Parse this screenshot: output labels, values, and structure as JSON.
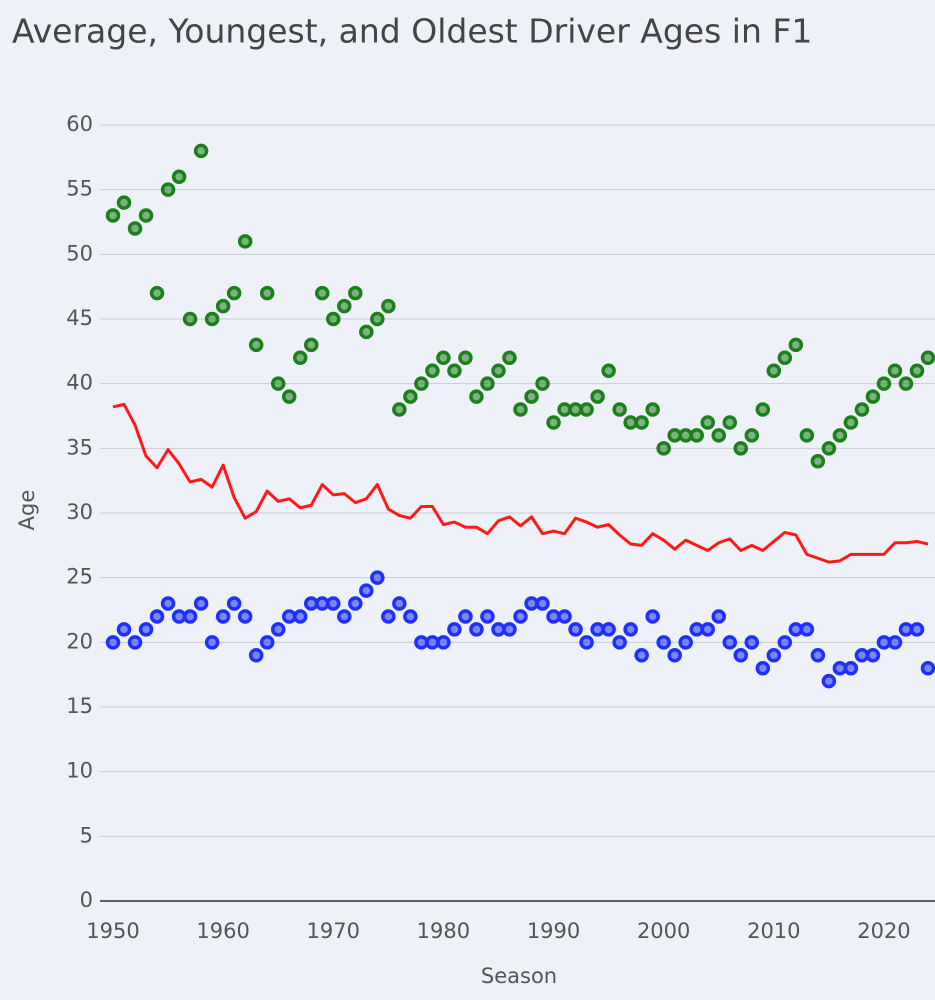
{
  "chart_data": {
    "type": "scatter-line",
    "title": "Average, Youngest, and Oldest Driver Ages in F1",
    "xlabel": "Season",
    "ylabel": "Age",
    "x": [
      1950,
      1951,
      1952,
      1953,
      1954,
      1955,
      1956,
      1957,
      1958,
      1959,
      1960,
      1961,
      1962,
      1963,
      1964,
      1965,
      1966,
      1967,
      1968,
      1969,
      1970,
      1971,
      1972,
      1973,
      1974,
      1975,
      1976,
      1977,
      1978,
      1979,
      1980,
      1981,
      1982,
      1983,
      1984,
      1985,
      1986,
      1987,
      1988,
      1989,
      1990,
      1991,
      1992,
      1993,
      1994,
      1995,
      1996,
      1997,
      1998,
      1999,
      2000,
      2001,
      2002,
      2003,
      2004,
      2005,
      2006,
      2007,
      2008,
      2009,
      2010,
      2011,
      2012,
      2013,
      2014,
      2015,
      2016,
      2017,
      2018,
      2019,
      2020,
      2021,
      2022,
      2023,
      2024
    ],
    "series": [
      {
        "kind": "scatter",
        "color": "#1c7f1c",
        "values": [
          53,
          54,
          52,
          53,
          47,
          55,
          56,
          45,
          58,
          45,
          46,
          47,
          51,
          43,
          47,
          40,
          39,
          42,
          43,
          47,
          45,
          46,
          47,
          44,
          45,
          46,
          38,
          39,
          40,
          41,
          42,
          41,
          42,
          39,
          40,
          41,
          42,
          38,
          39,
          40,
          37,
          38,
          38,
          38,
          39,
          41,
          38,
          37,
          37,
          38,
          35,
          36,
          36,
          36,
          37,
          36,
          37,
          35,
          36,
          38,
          41,
          42,
          43,
          36,
          34,
          35,
          36,
          37,
          38,
          39,
          40,
          41,
          40,
          41,
          42
        ]
      },
      {
        "kind": "scatter",
        "color": "#1f2fff",
        "values": [
          20,
          21,
          20,
          21,
          22,
          23,
          22,
          22,
          23,
          20,
          22,
          23,
          22,
          19,
          20,
          21,
          22,
          22,
          23,
          23,
          23,
          22,
          23,
          24,
          25,
          22,
          23,
          22,
          20,
          20,
          20,
          21,
          22,
          21,
          22,
          21,
          21,
          22,
          23,
          23,
          22,
          22,
          21,
          20,
          21,
          21,
          20,
          21,
          19,
          22,
          20,
          19,
          20,
          21,
          21,
          22,
          20,
          19,
          20,
          18,
          19,
          20,
          21,
          21,
          19,
          17,
          18,
          18,
          19,
          19,
          20,
          20,
          21,
          21,
          18
        ]
      },
      {
        "kind": "line",
        "color": "#ff1a1a",
        "values": [
          38.2,
          38.4,
          36.8,
          34.4,
          33.5,
          34.9,
          33.8,
          32.4,
          32.6,
          32.0,
          33.7,
          31.2,
          29.6,
          30.1,
          31.7,
          30.9,
          31.1,
          30.4,
          30.6,
          32.2,
          31.4,
          31.5,
          30.8,
          31.1,
          32.2,
          30.3,
          29.8,
          29.6,
          30.5,
          30.5,
          29.1,
          29.3,
          28.9,
          28.9,
          28.4,
          29.4,
          29.7,
          29.0,
          29.7,
          28.4,
          28.6,
          28.4,
          29.6,
          29.3,
          28.9,
          29.1,
          28.3,
          27.6,
          27.5,
          28.4,
          27.9,
          27.2,
          27.9,
          27.5,
          27.1,
          27.7,
          28.0,
          27.1,
          27.5,
          27.1,
          27.8,
          28.5,
          28.3,
          26.8,
          26.5,
          26.2,
          26.3,
          26.8,
          26.8,
          26.8,
          26.8,
          27.7,
          27.7,
          27.8,
          27.6
        ]
      }
    ],
    "xlim": [
      1950,
      2024
    ],
    "xticks": [
      1950,
      1960,
      1970,
      1980,
      1990,
      2000,
      2010,
      2020
    ],
    "ylim": [
      0,
      60
    ],
    "yticks": [
      0,
      5,
      10,
      15,
      20,
      25,
      30,
      35,
      40,
      45,
      50,
      55,
      60
    ],
    "grid": true
  }
}
